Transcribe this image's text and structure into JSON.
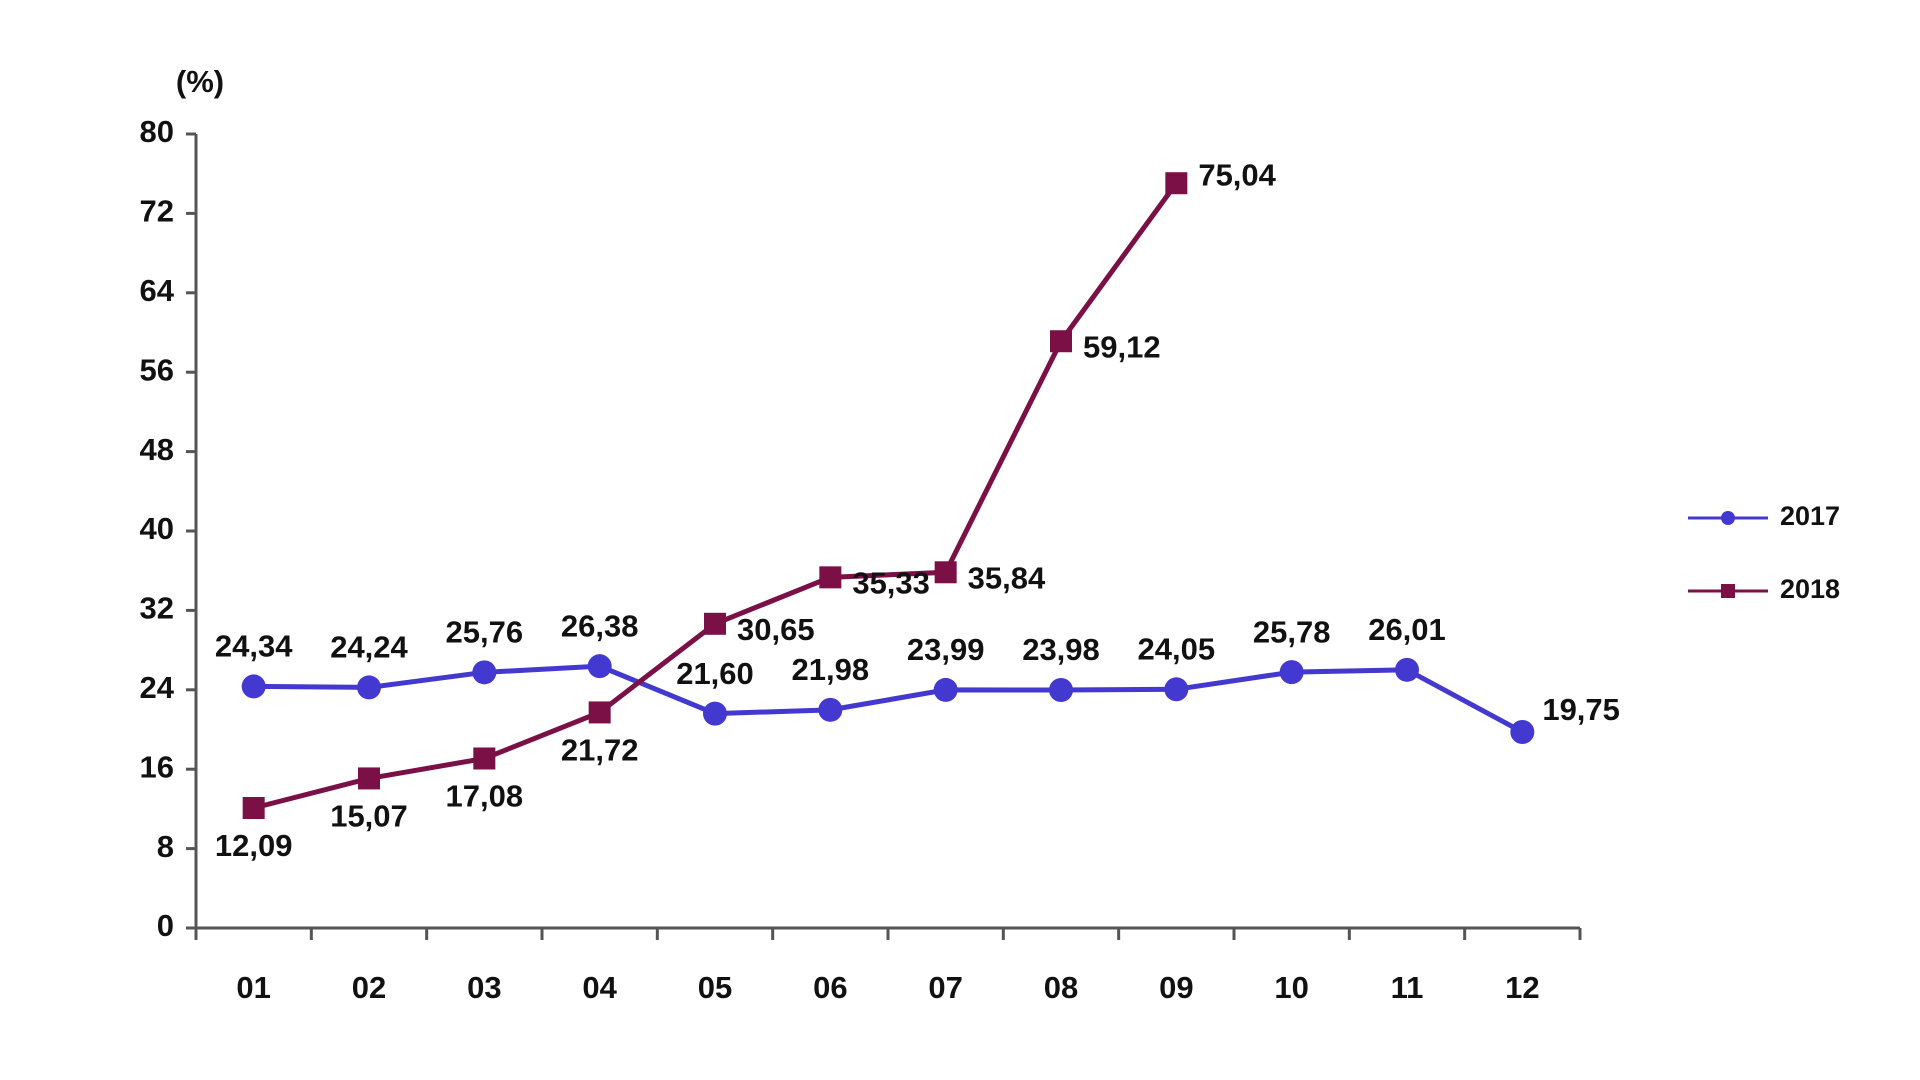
{
  "chart_data": {
    "type": "line",
    "y_label": "(%)",
    "categories": [
      "01",
      "02",
      "03",
      "04",
      "05",
      "06",
      "07",
      "08",
      "09",
      "10",
      "11",
      "12"
    ],
    "series": [
      {
        "name": "2017",
        "color": "#4338d0",
        "marker": "circle",
        "values": [
          24.34,
          24.24,
          25.76,
          26.38,
          21.6,
          21.98,
          23.99,
          23.98,
          24.05,
          25.78,
          26.01,
          19.75
        ],
        "value_labels": [
          "24,34",
          "24,24",
          "25,76",
          "26,38",
          "21,60",
          "21,98",
          "23,99",
          "23,98",
          "24,05",
          "25,78",
          "26,01",
          "19,75"
        ]
      },
      {
        "name": "2018",
        "color": "#7a1046",
        "marker": "square",
        "values": [
          12.09,
          15.07,
          17.08,
          21.72,
          30.65,
          35.33,
          35.84,
          59.12,
          75.04,
          null,
          null,
          null
        ],
        "value_labels": [
          "12,09",
          "15,07",
          "17,08",
          "21,72",
          "30,65",
          "35,33",
          "35,84",
          "59,12",
          "75,04",
          null,
          null,
          null
        ]
      }
    ],
    "ylim": [
      0,
      80
    ],
    "yticks": [
      0,
      8,
      16,
      24,
      32,
      40,
      48,
      56,
      64,
      72,
      80
    ],
    "grid": false,
    "legend": "right"
  }
}
